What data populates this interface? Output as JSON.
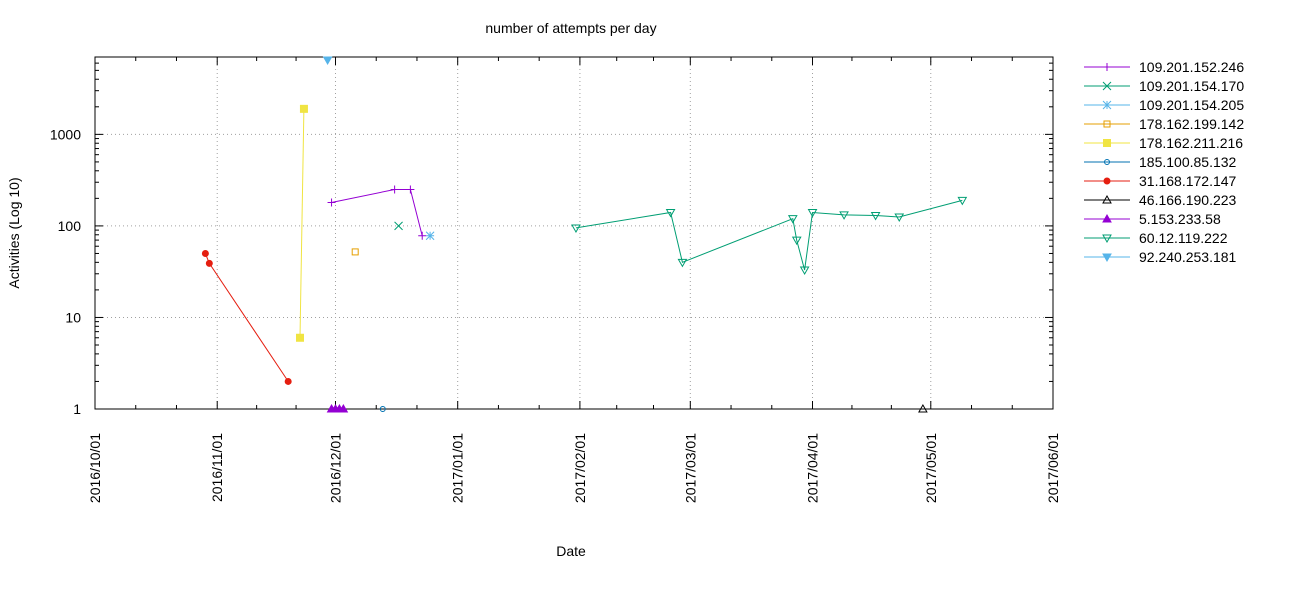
{
  "chart_data": {
    "type": "line",
    "title": "number of attempts per day",
    "xlabel": "Date",
    "ylabel": "Activities (Log 10)",
    "yscale": "log",
    "ylim": [
      1,
      7000
    ],
    "xlim": [
      "2016-10-01",
      "2017-06-01"
    ],
    "grid": true,
    "legend_position": "right",
    "x_ticks": [
      "2016/10/01",
      "2016/11/01",
      "2016/12/01",
      "2017/01/01",
      "2017/02/01",
      "2017/03/01",
      "2017/04/01",
      "2017/05/01",
      "2017/06/01"
    ],
    "y_ticks": [
      {
        "value": 1,
        "label": "1"
      },
      {
        "value": 10,
        "label": "10"
      },
      {
        "value": 100,
        "label": "100"
      },
      {
        "value": 1000,
        "label": "1000"
      }
    ],
    "series": [
      {
        "name": "109.201.152.246",
        "color": "#9400d3",
        "marker": "plus",
        "points": [
          [
            "2016-11-30",
            180
          ],
          [
            "2016-12-16",
            250
          ],
          [
            "2016-12-20",
            250
          ],
          [
            "2016-12-23",
            78
          ]
        ]
      },
      {
        "name": "109.201.154.170",
        "color": "#009e73",
        "marker": "cross",
        "points": [
          [
            "2016-12-17",
            100
          ]
        ]
      },
      {
        "name": "109.201.154.205",
        "color": "#56b4e9",
        "marker": "star",
        "points": [
          [
            "2016-12-25",
            78
          ]
        ]
      },
      {
        "name": "178.162.199.142",
        "color": "#e69f00",
        "marker": "square-open",
        "points": [
          [
            "2016-12-06",
            52
          ]
        ]
      },
      {
        "name": "178.162.211.216",
        "color": "#f0e442",
        "marker": "square-filled",
        "points": [
          [
            "2016-11-22",
            6
          ],
          [
            "2016-11-23",
            1900
          ]
        ]
      },
      {
        "name": "185.100.85.132",
        "color": "#0072b2",
        "marker": "circle-open",
        "points": [
          [
            "2016-12-13",
            1
          ]
        ]
      },
      {
        "name": "31.168.172.147",
        "color": "#e51e10",
        "marker": "circle-filled",
        "points": [
          [
            "2016-10-29",
            50
          ],
          [
            "2016-10-30",
            39
          ],
          [
            "2016-11-19",
            2
          ]
        ]
      },
      {
        "name": "46.166.190.223",
        "color": "#000000",
        "marker": "triangle-open",
        "points": [
          [
            "2017-04-29",
            1
          ]
        ]
      },
      {
        "name": "5.153.233.58",
        "color": "#9400d3",
        "marker": "triangle-filled",
        "points": [
          [
            "2016-11-30",
            1
          ],
          [
            "2016-12-01",
            1
          ],
          [
            "2016-12-02",
            1
          ],
          [
            "2016-12-03",
            1
          ]
        ]
      },
      {
        "name": "60.12.119.222",
        "color": "#009e73",
        "marker": "triangle-down-open",
        "points": [
          [
            "2017-01-31",
            95
          ],
          [
            "2017-02-24",
            140
          ],
          [
            "2017-02-27",
            40
          ],
          [
            "2017-03-27",
            120
          ],
          [
            "2017-03-28",
            70
          ],
          [
            "2017-03-30",
            33
          ],
          [
            "2017-04-01",
            140
          ],
          [
            "2017-04-09",
            132
          ],
          [
            "2017-04-17",
            130
          ],
          [
            "2017-04-23",
            125
          ],
          [
            "2017-05-09",
            190
          ]
        ]
      },
      {
        "name": "92.240.253.181",
        "color": "#56b4e9",
        "marker": "triangle-down-filled",
        "points": [
          [
            "2016-11-29",
            6500
          ]
        ]
      }
    ]
  }
}
